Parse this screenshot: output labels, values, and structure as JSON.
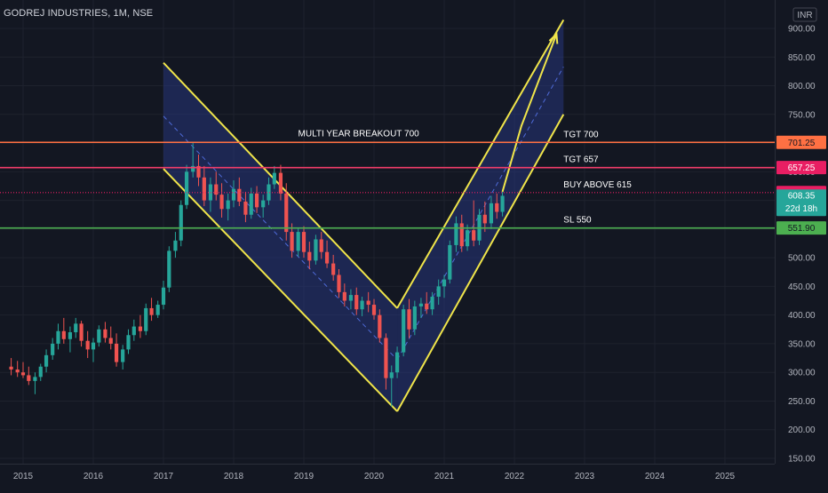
{
  "header": {
    "title": "GODREJ INDUSTRIES, 1M, NSE"
  },
  "currency": "INR",
  "colors": {
    "background": "#131722",
    "grid": "#1e222d",
    "axis_text": "#b2b5be",
    "up": "#26a69a",
    "down": "#ef5350",
    "channel": "#f0e54a",
    "channel_fill": "#2a3b8f"
  },
  "chart_data": {
    "type": "candlestick",
    "x_ticks": [
      "2015",
      "2016",
      "2017",
      "2018",
      "2019",
      "2020",
      "2021",
      "2022",
      "2023",
      "2024",
      "2025"
    ],
    "y_ticks": [
      "900.00",
      "850.00",
      "800.00",
      "750.00",
      "700.00",
      "650.00",
      "600.00",
      "550.00",
      "500.00",
      "450.00",
      "400.00",
      "350.00",
      "300.00",
      "250.00",
      "200.00",
      "150.00"
    ],
    "ylim": [
      140,
      915
    ],
    "xlim": [
      2014.83,
      2025.9
    ],
    "candles": [
      {
        "t": 2014.83,
        "o": 310,
        "h": 325,
        "l": 295,
        "c": 305
      },
      {
        "t": 2014.92,
        "o": 305,
        "h": 320,
        "l": 292,
        "c": 300
      },
      {
        "t": 2015.0,
        "o": 300,
        "h": 318,
        "l": 290,
        "c": 295
      },
      {
        "t": 2015.08,
        "o": 295,
        "h": 310,
        "l": 278,
        "c": 285
      },
      {
        "t": 2015.17,
        "o": 285,
        "h": 300,
        "l": 262,
        "c": 292
      },
      {
        "t": 2015.25,
        "o": 292,
        "h": 315,
        "l": 285,
        "c": 310
      },
      {
        "t": 2015.33,
        "o": 310,
        "h": 340,
        "l": 300,
        "c": 330
      },
      {
        "t": 2015.42,
        "o": 330,
        "h": 360,
        "l": 322,
        "c": 350
      },
      {
        "t": 2015.5,
        "o": 350,
        "h": 385,
        "l": 340,
        "c": 372
      },
      {
        "t": 2015.58,
        "o": 372,
        "h": 395,
        "l": 350,
        "c": 358
      },
      {
        "t": 2015.67,
        "o": 358,
        "h": 380,
        "l": 335,
        "c": 370
      },
      {
        "t": 2015.75,
        "o": 370,
        "h": 395,
        "l": 360,
        "c": 385
      },
      {
        "t": 2015.83,
        "o": 385,
        "h": 390,
        "l": 345,
        "c": 355
      },
      {
        "t": 2015.92,
        "o": 355,
        "h": 372,
        "l": 325,
        "c": 340
      },
      {
        "t": 2016.0,
        "o": 340,
        "h": 360,
        "l": 318,
        "c": 352
      },
      {
        "t": 2016.08,
        "o": 352,
        "h": 382,
        "l": 345,
        "c": 375
      },
      {
        "t": 2016.17,
        "o": 375,
        "h": 388,
        "l": 352,
        "c": 360
      },
      {
        "t": 2016.25,
        "o": 360,
        "h": 380,
        "l": 340,
        "c": 350
      },
      {
        "t": 2016.33,
        "o": 350,
        "h": 368,
        "l": 310,
        "c": 318
      },
      {
        "t": 2016.42,
        "o": 318,
        "h": 348,
        "l": 305,
        "c": 340
      },
      {
        "t": 2016.5,
        "o": 340,
        "h": 375,
        "l": 332,
        "c": 365
      },
      {
        "t": 2016.58,
        "o": 365,
        "h": 392,
        "l": 355,
        "c": 380
      },
      {
        "t": 2016.67,
        "o": 380,
        "h": 400,
        "l": 360,
        "c": 372
      },
      {
        "t": 2016.75,
        "o": 372,
        "h": 420,
        "l": 365,
        "c": 412
      },
      {
        "t": 2016.83,
        "o": 412,
        "h": 430,
        "l": 390,
        "c": 400
      },
      {
        "t": 2016.92,
        "o": 400,
        "h": 425,
        "l": 395,
        "c": 418
      },
      {
        "t": 2017.0,
        "o": 418,
        "h": 460,
        "l": 410,
        "c": 448
      },
      {
        "t": 2017.08,
        "o": 448,
        "h": 520,
        "l": 440,
        "c": 512
      },
      {
        "t": 2017.17,
        "o": 512,
        "h": 545,
        "l": 500,
        "c": 530
      },
      {
        "t": 2017.25,
        "o": 530,
        "h": 600,
        "l": 520,
        "c": 592
      },
      {
        "t": 2017.33,
        "o": 592,
        "h": 662,
        "l": 585,
        "c": 650
      },
      {
        "t": 2017.42,
        "o": 650,
        "h": 700,
        "l": 640,
        "c": 660
      },
      {
        "t": 2017.5,
        "o": 660,
        "h": 680,
        "l": 625,
        "c": 640
      },
      {
        "t": 2017.58,
        "o": 640,
        "h": 660,
        "l": 590,
        "c": 600
      },
      {
        "t": 2017.67,
        "o": 600,
        "h": 640,
        "l": 580,
        "c": 628
      },
      {
        "t": 2017.75,
        "o": 628,
        "h": 650,
        "l": 600,
        "c": 610
      },
      {
        "t": 2017.83,
        "o": 610,
        "h": 630,
        "l": 570,
        "c": 585
      },
      {
        "t": 2017.92,
        "o": 585,
        "h": 612,
        "l": 565,
        "c": 600
      },
      {
        "t": 2018.0,
        "o": 600,
        "h": 635,
        "l": 588,
        "c": 620
      },
      {
        "t": 2018.08,
        "o": 620,
        "h": 640,
        "l": 590,
        "c": 598
      },
      {
        "t": 2018.17,
        "o": 598,
        "h": 615,
        "l": 562,
        "c": 575
      },
      {
        "t": 2018.25,
        "o": 575,
        "h": 622,
        "l": 568,
        "c": 612
      },
      {
        "t": 2018.33,
        "o": 612,
        "h": 625,
        "l": 578,
        "c": 588
      },
      {
        "t": 2018.42,
        "o": 588,
        "h": 610,
        "l": 570,
        "c": 600
      },
      {
        "t": 2018.5,
        "o": 600,
        "h": 640,
        "l": 592,
        "c": 628
      },
      {
        "t": 2018.58,
        "o": 628,
        "h": 660,
        "l": 620,
        "c": 648
      },
      {
        "t": 2018.67,
        "o": 648,
        "h": 662,
        "l": 600,
        "c": 612
      },
      {
        "t": 2018.75,
        "o": 612,
        "h": 630,
        "l": 530,
        "c": 545
      },
      {
        "t": 2018.83,
        "o": 545,
        "h": 560,
        "l": 500,
        "c": 512
      },
      {
        "t": 2018.92,
        "o": 512,
        "h": 552,
        "l": 502,
        "c": 545
      },
      {
        "t": 2019.0,
        "o": 545,
        "h": 555,
        "l": 500,
        "c": 510
      },
      {
        "t": 2019.08,
        "o": 510,
        "h": 528,
        "l": 480,
        "c": 495
      },
      {
        "t": 2019.17,
        "o": 495,
        "h": 540,
        "l": 488,
        "c": 532
      },
      {
        "t": 2019.25,
        "o": 532,
        "h": 545,
        "l": 498,
        "c": 510
      },
      {
        "t": 2019.33,
        "o": 510,
        "h": 530,
        "l": 482,
        "c": 490
      },
      {
        "t": 2019.42,
        "o": 490,
        "h": 505,
        "l": 460,
        "c": 470
      },
      {
        "t": 2019.5,
        "o": 470,
        "h": 480,
        "l": 430,
        "c": 440
      },
      {
        "t": 2019.58,
        "o": 440,
        "h": 455,
        "l": 415,
        "c": 425
      },
      {
        "t": 2019.67,
        "o": 425,
        "h": 445,
        "l": 410,
        "c": 435
      },
      {
        "t": 2019.75,
        "o": 435,
        "h": 448,
        "l": 400,
        "c": 410
      },
      {
        "t": 2019.83,
        "o": 410,
        "h": 432,
        "l": 398,
        "c": 425
      },
      {
        "t": 2019.92,
        "o": 425,
        "h": 440,
        "l": 405,
        "c": 418
      },
      {
        "t": 2020.0,
        "o": 418,
        "h": 428,
        "l": 392,
        "c": 400
      },
      {
        "t": 2020.08,
        "o": 400,
        "h": 410,
        "l": 352,
        "c": 360
      },
      {
        "t": 2020.17,
        "o": 360,
        "h": 368,
        "l": 270,
        "c": 290
      },
      {
        "t": 2020.25,
        "o": 290,
        "h": 312,
        "l": 240,
        "c": 300
      },
      {
        "t": 2020.33,
        "o": 300,
        "h": 345,
        "l": 290,
        "c": 335
      },
      {
        "t": 2020.42,
        "o": 335,
        "h": 418,
        "l": 328,
        "c": 410
      },
      {
        "t": 2020.5,
        "o": 410,
        "h": 428,
        "l": 360,
        "c": 375
      },
      {
        "t": 2020.58,
        "o": 375,
        "h": 425,
        "l": 365,
        "c": 415
      },
      {
        "t": 2020.67,
        "o": 415,
        "h": 430,
        "l": 395,
        "c": 420
      },
      {
        "t": 2020.75,
        "o": 420,
        "h": 440,
        "l": 402,
        "c": 410
      },
      {
        "t": 2020.83,
        "o": 410,
        "h": 440,
        "l": 400,
        "c": 432
      },
      {
        "t": 2020.92,
        "o": 432,
        "h": 462,
        "l": 418,
        "c": 450
      },
      {
        "t": 2021.0,
        "o": 450,
        "h": 470,
        "l": 430,
        "c": 462
      },
      {
        "t": 2021.08,
        "o": 462,
        "h": 530,
        "l": 455,
        "c": 522
      },
      {
        "t": 2021.17,
        "o": 522,
        "h": 572,
        "l": 510,
        "c": 560
      },
      {
        "t": 2021.25,
        "o": 560,
        "h": 575,
        "l": 510,
        "c": 520
      },
      {
        "t": 2021.33,
        "o": 520,
        "h": 558,
        "l": 512,
        "c": 548
      },
      {
        "t": 2021.42,
        "o": 548,
        "h": 600,
        "l": 520,
        "c": 530
      },
      {
        "t": 2021.5,
        "o": 530,
        "h": 585,
        "l": 522,
        "c": 575
      },
      {
        "t": 2021.58,
        "o": 575,
        "h": 598,
        "l": 545,
        "c": 560
      },
      {
        "t": 2021.67,
        "o": 560,
        "h": 608,
        "l": 550,
        "c": 595
      },
      {
        "t": 2021.75,
        "o": 595,
        "h": 612,
        "l": 568,
        "c": 580
      },
      {
        "t": 2021.83,
        "o": 580,
        "h": 615,
        "l": 572,
        "c": 608
      }
    ],
    "horizontal_lines": [
      {
        "name": "tgt-700-line",
        "value": 701.25,
        "color": "#ff7043",
        "label": "701.25",
        "label_bg": "#ff7043",
        "label_fg": "#131722",
        "note": "TGT 700",
        "note_x": 2022.7
      },
      {
        "name": "tgt-657-line",
        "value": 657.25,
        "color": "#f23c6a",
        "label": "657.25",
        "label_bg": "#e91e63",
        "label_fg": "#ffffff",
        "note": "TGT 657",
        "note_x": 2022.7
      },
      {
        "name": "buy-above-line",
        "value": 613.65,
        "color": "#e91e63",
        "dotted": true,
        "label": "613.65",
        "label_bg": "#e91e63",
        "label_fg": "#ffffff",
        "note": "BUY ABOVE 615",
        "note_x": 2022.7
      },
      {
        "name": "sl-550-line",
        "value": 551.9,
        "color": "#4caf50",
        "label": "551.90",
        "label_bg": "#4caf50",
        "label_fg": "#131722",
        "note": "SL 550",
        "note_x": 2022.7
      }
    ],
    "current_price": {
      "value": 608.35,
      "label": "608.35",
      "countdown": "22d 18h",
      "color": "#26a69a"
    },
    "annotations": [
      {
        "text": "MULTI YEAR BREAKOUT 700",
        "t": 2019.78,
        "value": 712
      }
    ],
    "channel_down": {
      "upper": [
        [
          2017.0,
          840
        ],
        [
          2020.33,
          412
        ]
      ],
      "lower": [
        [
          2017.0,
          655
        ],
        [
          2020.33,
          232
        ]
      ],
      "mid": [
        [
          2017.0,
          747
        ],
        [
          2020.33,
          322
        ]
      ]
    },
    "channel_up": {
      "upper": [
        [
          2020.33,
          412
        ],
        [
          2022.7,
          915
        ]
      ],
      "lower": [
        [
          2020.33,
          232
        ],
        [
          2022.7,
          750
        ]
      ],
      "mid": [
        [
          2020.33,
          322
        ],
        [
          2022.7,
          833
        ]
      ]
    },
    "projection_arrow": [
      [
        2021.83,
        615
      ],
      [
        2022.1,
        730
      ],
      [
        2022.6,
        890
      ]
    ]
  }
}
